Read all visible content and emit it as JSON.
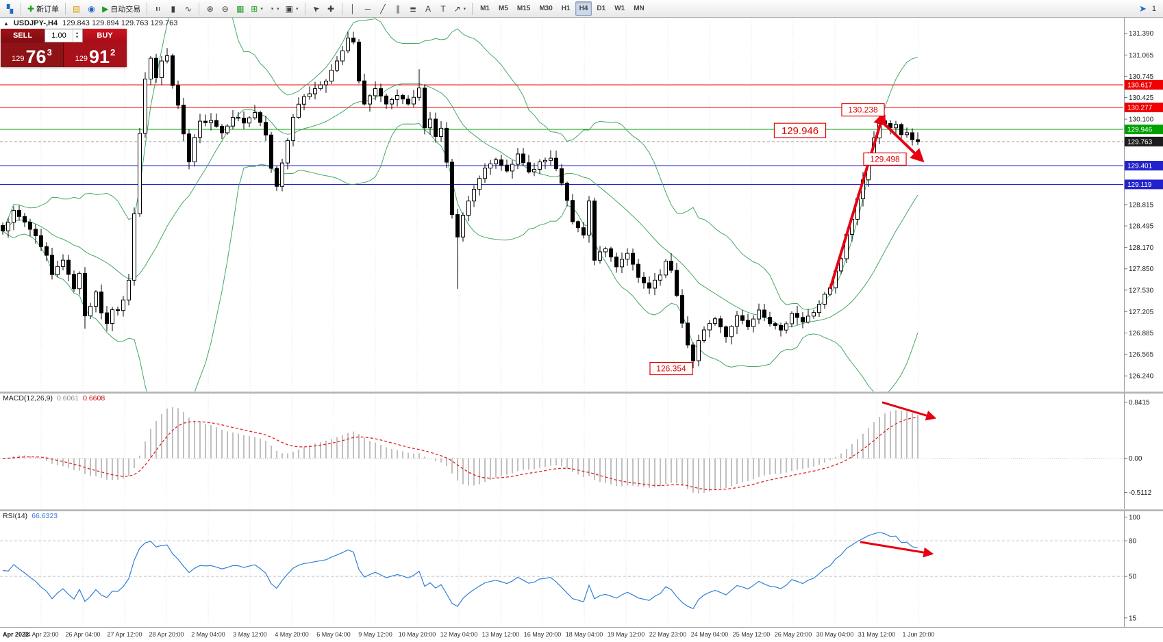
{
  "toolbar": {
    "groups": [
      {
        "items": [
          {
            "name": "app-menu-button",
            "icon": "app",
            "color": "#1a6fb8"
          }
        ]
      },
      {
        "items": [
          {
            "name": "new-order-button",
            "icon": "new-order",
            "label": "新订单",
            "color": "#1f9d1f"
          }
        ]
      },
      {
        "items": [
          {
            "name": "market-watch-button",
            "icon": "market-watch",
            "color": "#d89a00"
          },
          {
            "name": "navigator-button",
            "icon": "navigator",
            "color": "#1e66c8"
          },
          {
            "name": "auto-trading-button",
            "icon": "autotrade",
            "label": "自动交易",
            "color": "#1f9d1f"
          }
        ]
      },
      {
        "items": [
          {
            "name": "bar-chart-button",
            "icon": "bars"
          },
          {
            "name": "candle-chart-button",
            "icon": "candles"
          },
          {
            "name": "line-chart-button",
            "icon": "linechart"
          }
        ]
      },
      {
        "items": [
          {
            "name": "zoom-in-button",
            "icon": "zoom-in"
          },
          {
            "name": "zoom-out-button",
            "icon": "zoom-out"
          },
          {
            "name": "tile-windows-button",
            "icon": "tile",
            "color": "#1f9d1f"
          },
          {
            "name": "new-chart-button",
            "icon": "new-chart",
            "dropdown": true,
            "color": "#1f9d1f"
          },
          {
            "name": "periods-button",
            "icon": "periods",
            "dropdown": true
          },
          {
            "name": "templates-button",
            "icon": "templates",
            "dropdown": true
          }
        ]
      },
      {
        "items": [
          {
            "name": "cursor-button",
            "icon": "cursor"
          },
          {
            "name": "crosshair-button",
            "icon": "crosshair"
          }
        ]
      },
      {
        "items": [
          {
            "name": "vertical-line-button",
            "icon": "vline"
          },
          {
            "name": "horizontal-line-button",
            "icon": "hline"
          },
          {
            "name": "trendline-button",
            "icon": "tline"
          },
          {
            "name": "channel-button",
            "icon": "channel"
          },
          {
            "name": "fibonacci-button",
            "icon": "fibo"
          },
          {
            "name": "text-button",
            "icon": "text"
          },
          {
            "name": "label-button",
            "icon": "label"
          },
          {
            "name": "arrows-button",
            "icon": "arrows",
            "dropdown": true
          }
        ]
      }
    ],
    "timeframes": [
      "M1",
      "M5",
      "M15",
      "M30",
      "H1",
      "H4",
      "D1",
      "W1",
      "MN"
    ],
    "active_timeframe": "H4",
    "right_badge": "1"
  },
  "chart": {
    "symbol_title": "USDJPY-,H4",
    "ohlc": "129.843 129.894 129.763 129.763"
  },
  "one_click": {
    "sell_label": "SELL",
    "buy_label": "BUY",
    "volume": "1.00",
    "sell_price": {
      "prefix": "129",
      "big": "76",
      "sup": "3"
    },
    "buy_price": {
      "prefix": "129",
      "big": "91",
      "sup": "2"
    }
  },
  "macd": {
    "label": "MACD(12,26,9)",
    "value_main": "0.6061",
    "value_signal": "0.6608",
    "ticks": [
      "0.8415",
      "0.00",
      "-0.5112"
    ]
  },
  "rsi": {
    "label": "RSI(14)",
    "value": "66.6323",
    "ticks": [
      "100",
      "80",
      "50",
      "15"
    ],
    "levels": [
      80,
      50
    ]
  },
  "time_axis": {
    "era": "Apr 2022",
    "labels": [
      "24 Apr 23:00",
      "26 Apr 04:00",
      "27 Apr 12:00",
      "28 Apr 20:00",
      "2 May 04:00",
      "3 May 12:00",
      "4 May 20:00",
      "6 May 04:00",
      "9 May 12:00",
      "10 May 20:00",
      "12 May 04:00",
      "13 May 12:00",
      "16 May 20:00",
      "18 May 04:00",
      "19 May 12:00",
      "22 May 23:00",
      "24 May 04:00",
      "25 May 12:00",
      "26 May 20:00",
      "30 May 04:00",
      "31 May 12:00",
      "1 Jun 20:00"
    ]
  },
  "chart_data": {
    "type": "candlestick",
    "symbol": "USDJPY-",
    "timeframe": "H4",
    "title": "USDJPY-,H4",
    "ohlc_display": {
      "open": "129.843",
      "high": "129.894",
      "low": "129.763",
      "close": "129.763"
    },
    "price_range": [
      126.17,
      131.48
    ],
    "price_ticks": [
      "131.390",
      "131.065",
      "130.745",
      "130.425",
      "130.100",
      "128.815",
      "128.495",
      "128.170",
      "127.850",
      "127.530",
      "127.205",
      "126.885",
      "126.565",
      "126.240"
    ],
    "levels": [
      {
        "value": 130.617,
        "label": "130.617",
        "color": "#f00000"
      },
      {
        "value": 130.277,
        "label": "130.277",
        "color": "#f00000"
      },
      {
        "value": 129.946,
        "label": "129.946",
        "color": "#00a000"
      },
      {
        "value": 129.401,
        "label": "129.401",
        "color": "#2222cc"
      },
      {
        "value": 129.119,
        "label": "129.119",
        "color": "#2222cc"
      }
    ],
    "current_price": {
      "value": 129.763,
      "label": "129.763",
      "color": "#1c1c1c"
    },
    "num_candles": 168,
    "close_path": [
      [
        0,
        128.45
      ],
      [
        2,
        128.7
      ],
      [
        4,
        128.55
      ],
      [
        6,
        128.35
      ],
      [
        8,
        128.05
      ],
      [
        9,
        127.75
      ],
      [
        10,
        127.9
      ],
      [
        11,
        128.0
      ],
      [
        12,
        127.75
      ],
      [
        13,
        127.55
      ],
      [
        14,
        127.8
      ],
      [
        15,
        127.15
      ],
      [
        16,
        127.3
      ],
      [
        17,
        127.5
      ],
      [
        18,
        127.2
      ],
      [
        19,
        127.0
      ],
      [
        20,
        127.25
      ],
      [
        21,
        127.2
      ],
      [
        22,
        127.4
      ],
      [
        23,
        127.7
      ],
      [
        24,
        128.7
      ],
      [
        25,
        129.9
      ],
      [
        26,
        130.7
      ],
      [
        27,
        131.0
      ],
      [
        28,
        130.75
      ],
      [
        29,
        130.95
      ],
      [
        30,
        131.05
      ],
      [
        31,
        130.6
      ],
      [
        32,
        130.3
      ],
      [
        33,
        129.85
      ],
      [
        34,
        129.45
      ],
      [
        35,
        129.8
      ],
      [
        36,
        130.05
      ],
      [
        38,
        130.1
      ],
      [
        40,
        129.9
      ],
      [
        42,
        130.15
      ],
      [
        44,
        130.05
      ],
      [
        46,
        130.2
      ],
      [
        48,
        129.85
      ],
      [
        49,
        129.35
      ],
      [
        50,
        129.1
      ],
      [
        51,
        129.45
      ],
      [
        53,
        130.15
      ],
      [
        55,
        130.45
      ],
      [
        57,
        130.55
      ],
      [
        59,
        130.7
      ],
      [
        61,
        130.95
      ],
      [
        63,
        131.3
      ],
      [
        64,
        131.25
      ],
      [
        65,
        130.65
      ],
      [
        66,
        130.35
      ],
      [
        68,
        130.55
      ],
      [
        70,
        130.3
      ],
      [
        72,
        130.45
      ],
      [
        74,
        130.3
      ],
      [
        76,
        130.55
      ],
      [
        77,
        130.0
      ],
      [
        78,
        130.1
      ],
      [
        79,
        129.85
      ],
      [
        80,
        129.95
      ],
      [
        81,
        129.45
      ],
      [
        82,
        128.65
      ],
      [
        83,
        128.3
      ],
      [
        84,
        128.65
      ],
      [
        86,
        129.05
      ],
      [
        88,
        129.35
      ],
      [
        90,
        129.5
      ],
      [
        92,
        129.35
      ],
      [
        94,
        129.55
      ],
      [
        96,
        129.3
      ],
      [
        98,
        129.45
      ],
      [
        100,
        129.5
      ],
      [
        102,
        129.15
      ],
      [
        104,
        128.55
      ],
      [
        106,
        128.35
      ],
      [
        107,
        128.85
      ],
      [
        108,
        128.0
      ],
      [
        110,
        128.15
      ],
      [
        112,
        127.9
      ],
      [
        114,
        128.1
      ],
      [
        116,
        127.7
      ],
      [
        118,
        127.55
      ],
      [
        120,
        127.75
      ],
      [
        121,
        127.95
      ],
      [
        122,
        127.8
      ],
      [
        123,
        127.45
      ],
      [
        124,
        127.05
      ],
      [
        125,
        126.7
      ],
      [
        126,
        126.45
      ],
      [
        127,
        126.75
      ],
      [
        128,
        126.95
      ],
      [
        130,
        127.1
      ],
      [
        132,
        126.85
      ],
      [
        134,
        127.15
      ],
      [
        136,
        127.0
      ],
      [
        138,
        127.25
      ],
      [
        140,
        127.05
      ],
      [
        142,
        126.9
      ],
      [
        144,
        127.2
      ],
      [
        146,
        127.05
      ],
      [
        148,
        127.2
      ],
      [
        150,
        127.45
      ],
      [
        151,
        127.55
      ],
      [
        152,
        127.8
      ],
      [
        153,
        128.0
      ],
      [
        154,
        128.35
      ],
      [
        155,
        128.6
      ],
      [
        156,
        128.9
      ],
      [
        157,
        129.2
      ],
      [
        158,
        129.55
      ],
      [
        159,
        129.8
      ],
      [
        160,
        130.1
      ],
      [
        161,
        130.05
      ],
      [
        162,
        129.95
      ],
      [
        163,
        130.0
      ],
      [
        164,
        129.85
      ],
      [
        165,
        129.9
      ],
      [
        166,
        129.8
      ],
      [
        167,
        129.763
      ]
    ],
    "wick_overrides": {
      "15": {
        "low": 126.95
      },
      "63": {
        "high": 131.39
      },
      "76": {
        "high": 130.85
      },
      "83": {
        "low": 127.55
      },
      "126": {
        "low": 126.354
      },
      "160": {
        "high": 130.238
      }
    },
    "callouts": [
      {
        "text": "130.238",
        "i": 157,
        "price": 130.24,
        "size": "normal"
      },
      {
        "text": "129.946",
        "i": 145.5,
        "price": 129.93,
        "size": "large"
      },
      {
        "text": "129.498",
        "i": 161,
        "price": 129.5,
        "size": "normal"
      },
      {
        "text": "126.354",
        "i": 122,
        "price": 126.35,
        "size": "normal"
      }
    ],
    "arrows": {
      "price": [
        {
          "from": [
            151,
            127.55
          ],
          "to": [
            160.5,
            130.12
          ]
        },
        {
          "from": [
            160,
            130.1
          ],
          "to": [
            167.3,
            129.52
          ]
        }
      ],
      "macd": [
        {
          "from": [
            160.5,
            0.84
          ],
          "to": [
            169.5,
            0.62
          ]
        }
      ],
      "rsi": [
        {
          "from": [
            156.5,
            79
          ],
          "to": [
            169,
            69.5
          ]
        }
      ]
    },
    "indicators": {
      "macd_label": "MACD(12,26,9)",
      "rsi_label": "RSI(14)"
    },
    "colors": {
      "bands": "#2f9e52",
      "candle_up": "#ffffff",
      "candle_down": "#000000",
      "rsi_line": "#2f7ed8",
      "macd_histogram": "#b9b9b9",
      "macd_signal": "#e02020",
      "annotation": "#e60012",
      "callout": "#e00000"
    }
  }
}
